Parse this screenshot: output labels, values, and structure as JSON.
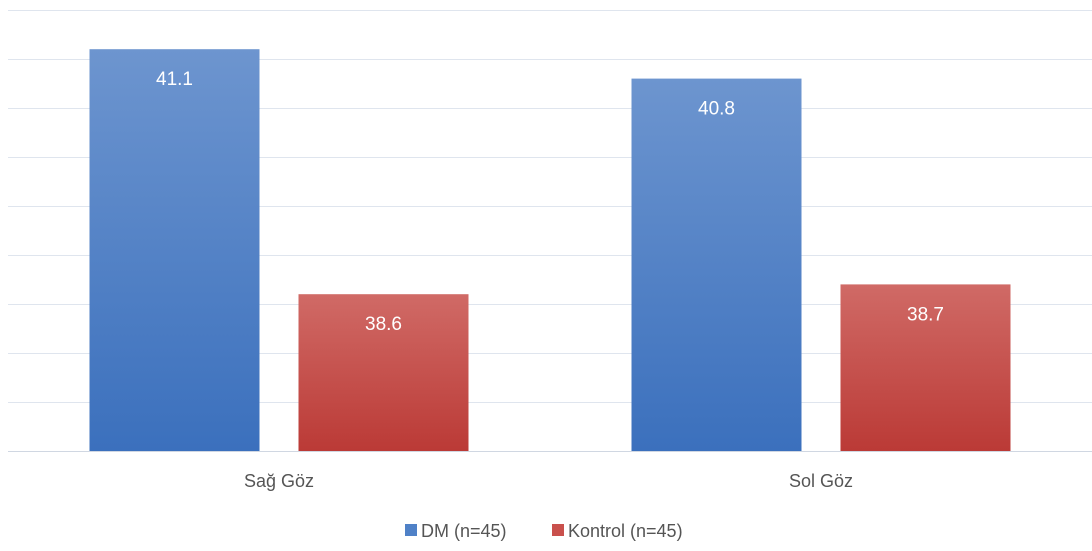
{
  "chart_data": {
    "type": "bar",
    "categories": [
      "Sağ Göz",
      "Sol Göz"
    ],
    "series": [
      {
        "name": "DM (n=45)",
        "values": [
          41.1,
          40.8
        ],
        "color": "#4f81c7"
      },
      {
        "name": "Kontrol (n=45)",
        "values": [
          38.6,
          38.7
        ],
        "color": "#c9504c"
      }
    ],
    "ylim": [
      37,
      41.5
    ],
    "gridline_step": 0.5,
    "grid": true,
    "legend": "bottom",
    "data_labels": true
  }
}
